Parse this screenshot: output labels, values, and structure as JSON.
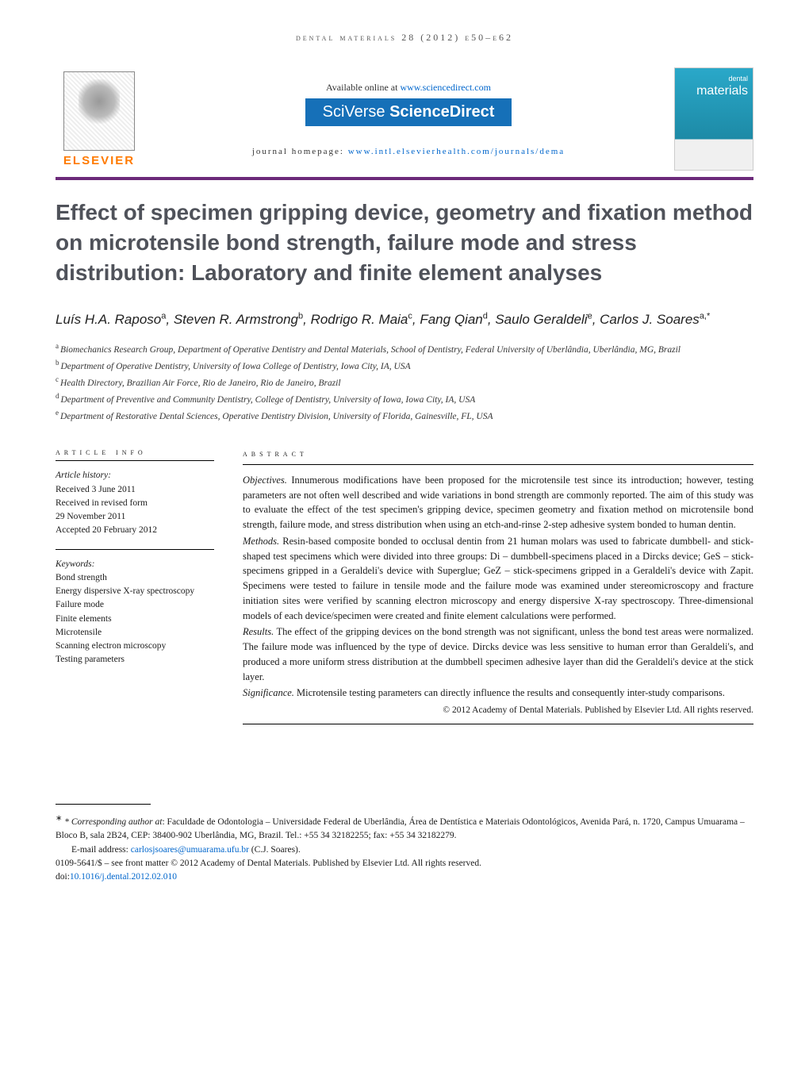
{
  "runningHeader": "dental materials 28 (2012) e50–e62",
  "banner": {
    "availableText": "Available online at ",
    "availableLink": "www.sciencedirect.com",
    "sciverse1": "SciVerse ",
    "sciverse2": "ScienceDirect",
    "homepagePrefix": "journal homepage: ",
    "homepageLink": "www.intl.elsevierhealth.com/journals/dema",
    "elsevierWord": "ELSEVIER",
    "coverSmall": "dental",
    "coverTitle": "materials"
  },
  "title": "Effect of specimen gripping device, geometry and fixation method on microtensile bond strength, failure mode and stress distribution: Laboratory and finite element analyses",
  "authors": [
    {
      "name": "Luís H.A. Raposo",
      "aff": "a"
    },
    {
      "name": "Steven R. Armstrong",
      "aff": "b"
    },
    {
      "name": "Rodrigo R. Maia",
      "aff": "c"
    },
    {
      "name": "Fang Qian",
      "aff": "d"
    },
    {
      "name": "Saulo Geraldeli",
      "aff": "e"
    },
    {
      "name": "Carlos J. Soares",
      "aff": "a,*"
    }
  ],
  "affiliations": [
    {
      "key": "a",
      "text": "Biomechanics Research Group, Department of Operative Dentistry and Dental Materials, School of Dentistry, Federal University of Uberlândia, Uberlândia, MG, Brazil"
    },
    {
      "key": "b",
      "text": "Department of Operative Dentistry, University of Iowa College of Dentistry, Iowa City, IA, USA"
    },
    {
      "key": "c",
      "text": "Health Directory, Brazilian Air Force, Rio de Janeiro, Rio de Janeiro, Brazil"
    },
    {
      "key": "d",
      "text": "Department of Preventive and Community Dentistry, College of Dentistry, University of Iowa, Iowa City, IA, USA"
    },
    {
      "key": "e",
      "text": "Department of Restorative Dental Sciences, Operative Dentistry Division, University of Florida, Gainesville, FL, USA"
    }
  ],
  "articleInfoHead": "article info",
  "abstractHead": "abstract",
  "history": {
    "label": "Article history:",
    "received": "Received 3 June 2011",
    "revised1": "Received in revised form",
    "revised2": "29 November 2011",
    "accepted": "Accepted 20 February 2012"
  },
  "keywordsLabel": "Keywords:",
  "keywords": [
    "Bond strength",
    "Energy dispersive X-ray spectroscopy",
    "Failure mode",
    "Finite elements",
    "Microtensile",
    "Scanning electron microscopy",
    "Testing parameters"
  ],
  "abstract": {
    "objectivesLabel": "Objectives.",
    "objectives": " Innumerous modifications have been proposed for the microtensile test since its introduction; however, testing parameters are not often well described and wide variations in bond strength are commonly reported. The aim of this study was to evaluate the effect of the test specimen's gripping device, specimen geometry and fixation method on microtensile bond strength, failure mode, and stress distribution when using an etch-and-rinse 2-step adhesive system bonded to human dentin.",
    "methodsLabel": "Methods.",
    "methods": " Resin-based composite bonded to occlusal dentin from 21 human molars was used to fabricate dumbbell- and stick-shaped test specimens which were divided into three groups: Di – dumbbell-specimens placed in a Dircks device; GeS – stick-specimens gripped in a Geraldeli's device with Superglue; GeZ – stick-specimens gripped in a Geraldeli's device with Zapit. Specimens were tested to failure in tensile mode and the failure mode was examined under stereomicroscopy and fracture initiation sites were verified by scanning electron microscopy and energy dispersive X-ray spectroscopy. Three-dimensional models of each device/specimen were created and finite element calculations were performed.",
    "resultsLabel": "Results.",
    "results": " The effect of the gripping devices on the bond strength was not significant, unless the bond test areas were normalized. The failure mode was influenced by the type of device. Dircks device was less sensitive to human error than Geraldeli's, and produced a more uniform stress distribution at the dumbbell specimen adhesive layer than did the Geraldeli's device at the stick layer.",
    "significanceLabel": "Significance.",
    "significance": " Microtensile testing parameters can directly influence the results and consequently inter-study comparisons."
  },
  "copyright": "© 2012 Academy of Dental Materials. Published by Elsevier Ltd. All rights reserved.",
  "footnotes": {
    "correspLabel": "* Corresponding author at",
    "corresp": ": Faculdade de Odontologia – Universidade Federal de Uberlândia, Área de Dentística e Materiais Odontológicos, Avenida Pará, n. 1720, Campus Umuarama – Bloco B, sala 2B24, CEP: 38400-902 Uberlândia, MG, Brazil. Tel.: +55 34 32182255; fax: +55 34 32182279.",
    "emailLabel": "E-mail address: ",
    "email": "carlosjsoares@umuarama.ufu.br",
    "emailWho": " (C.J. Soares).",
    "frontMatter": "0109-5641/$ – see front matter © 2012 Academy of Dental Materials. Published by Elsevier Ltd. All rights reserved.",
    "doiLabel": "doi:",
    "doi": "10.1016/j.dental.2012.02.010"
  }
}
